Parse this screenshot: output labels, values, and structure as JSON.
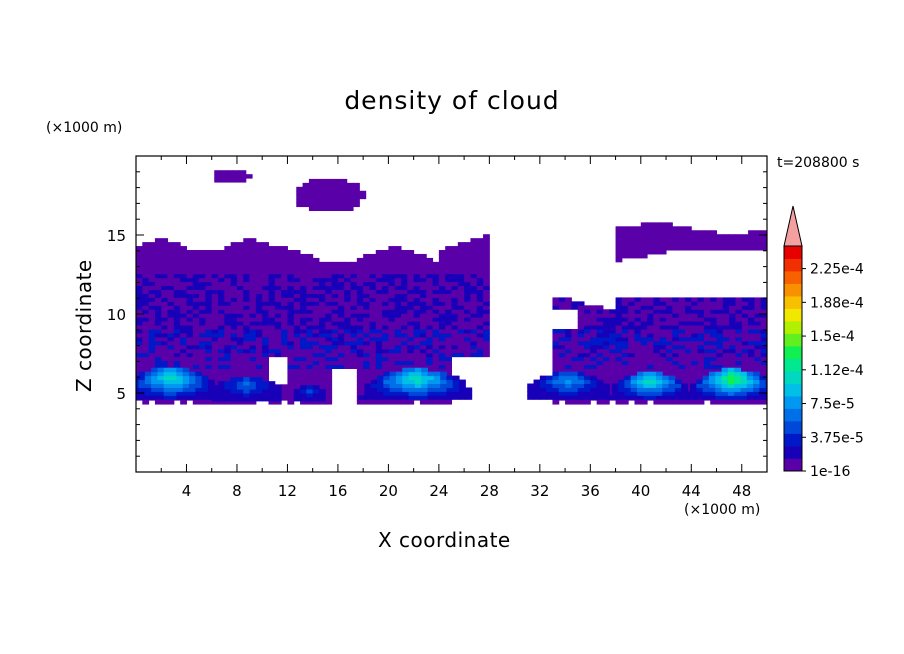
{
  "chart_data": {
    "type": "heatmap",
    "title": "density of cloud",
    "xlabel": "X coordinate",
    "ylabel": "Z coordinate",
    "x_unit": "(×1000 m)",
    "z_unit": "(×1000 m)",
    "time_label": "t=208800 s",
    "xlim": [
      0,
      50
    ],
    "zlim": [
      0,
      20
    ],
    "x_ticks": [
      4,
      8,
      12,
      16,
      20,
      24,
      28,
      32,
      36,
      40,
      44,
      48
    ],
    "z_ticks": [
      5,
      10,
      15
    ],
    "colorbar": {
      "labels": [
        "1e-16",
        "3.75e-5",
        "7.5e-5",
        "1.12e-4",
        "1.5e-4",
        "1.88e-4",
        "2.25e-4"
      ],
      "colors": [
        "#5a00a8",
        "#1800b8",
        "#0018c8",
        "#0048d8",
        "#0070e8",
        "#0098f0",
        "#00c0e8",
        "#00d8c0",
        "#00e890",
        "#10f050",
        "#60f020",
        "#b0f000",
        "#f0e800",
        "#f8c000",
        "#f89000",
        "#f86000",
        "#f03000",
        "#e80000"
      ],
      "extend_color": "#f4a0a0"
    }
  }
}
